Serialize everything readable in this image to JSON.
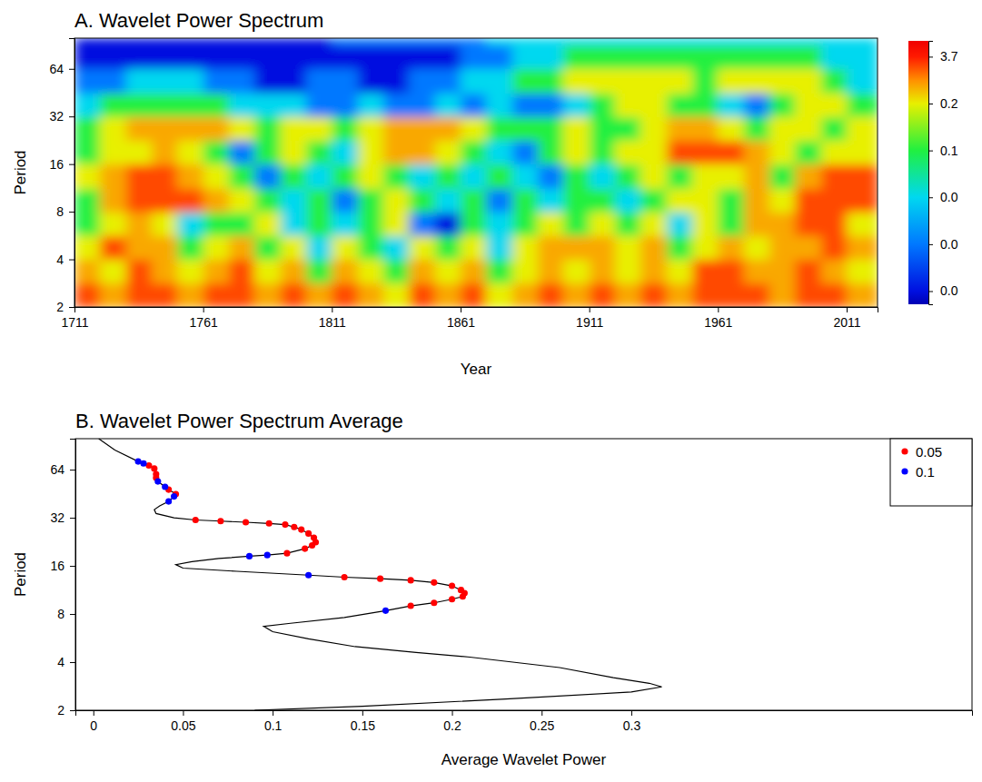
{
  "chart_data": [
    {
      "type": "heatmap",
      "title": "A. Wavelet Power Spectrum",
      "x_label": "Year",
      "y_label": "Period",
      "log": "y",
      "xlim": [
        1711,
        2023
      ],
      "ylim": [
        2,
        100
      ],
      "xticks": [
        1711,
        1761,
        1811,
        1861,
        1911,
        1961,
        2011
      ],
      "yticks": [
        2,
        4,
        8,
        16,
        32,
        64
      ],
      "x_bins": [
        1711,
        1721,
        1731,
        1741,
        1751,
        1761,
        1771,
        1781,
        1791,
        1801,
        1811,
        1821,
        1831,
        1841,
        1851,
        1861,
        1871,
        1881,
        1891,
        1901,
        1911,
        1921,
        1931,
        1941,
        1951,
        1961,
        1971,
        1981,
        1991,
        2001,
        2011,
        2023
      ],
      "y_bins": [
        2,
        2.83,
        4,
        5.66,
        8,
        11.31,
        16,
        22.63,
        32,
        45.25,
        64,
        90.51,
        100
      ],
      "cells": [
        [
          3,
          1.5,
          3,
          3,
          1.5,
          3,
          3,
          1.5,
          3,
          1.5,
          3,
          1.5,
          0.2,
          3,
          1.5,
          3,
          0.2,
          1.5,
          3,
          1.5,
          3,
          1.5,
          3,
          1.5,
          3,
          3,
          3,
          1.5,
          3,
          3,
          1.5
        ],
        [
          1.5,
          0.2,
          3,
          1.5,
          0.2,
          1.5,
          3,
          0.2,
          1.5,
          0.08,
          1.5,
          0.2,
          0.08,
          1.5,
          0.2,
          1.5,
          0.08,
          0.2,
          1.5,
          0.2,
          1.5,
          0.2,
          1.5,
          0.2,
          3,
          3,
          1.5,
          1.5,
          3,
          1.5,
          0.2
        ],
        [
          0.2,
          3,
          1.5,
          1.5,
          0.08,
          0.2,
          1.5,
          0.08,
          0.2,
          0.03,
          0.2,
          0.08,
          0.03,
          0.2,
          0.08,
          0.2,
          0.03,
          0.2,
          1.5,
          1.5,
          1.5,
          0.2,
          1.5,
          0.08,
          0.2,
          1.5,
          0.2,
          1.5,
          1.5,
          3,
          1.5
        ],
        [
          0.08,
          0.2,
          1.5,
          0.2,
          0.03,
          0.08,
          0.08,
          0.2,
          0.03,
          0.08,
          0.03,
          0.08,
          0.2,
          0.01,
          0.002,
          0.08,
          0.03,
          0.08,
          0.2,
          0.08,
          0.2,
          0.08,
          0.2,
          0.03,
          0.2,
          0.08,
          1.5,
          1.5,
          3,
          3,
          0.2
        ],
        [
          0.08,
          1.5,
          3,
          3,
          3,
          1.5,
          0.2,
          0.08,
          0.03,
          0.08,
          0.01,
          0.08,
          0.2,
          0.08,
          0.03,
          0.08,
          0.01,
          0.08,
          0.03,
          0.08,
          0.08,
          0.03,
          0.08,
          0.2,
          0.2,
          0.08,
          1.5,
          0.2,
          3,
          3,
          3
        ],
        [
          0.2,
          1.5,
          3,
          3,
          1.5,
          0.2,
          0.08,
          0.01,
          0.08,
          0.03,
          0.08,
          0.2,
          0.08,
          0.03,
          0.08,
          0.03,
          0.08,
          0.03,
          0.01,
          0.08,
          0.03,
          0.08,
          0.2,
          0.08,
          0.2,
          0.2,
          1.5,
          0.08,
          1.5,
          3,
          3
        ],
        [
          0.08,
          0.2,
          0.2,
          1.5,
          0.2,
          0.08,
          0.01,
          0.08,
          0.2,
          0.08,
          0.03,
          0.2,
          1.5,
          1.5,
          0.2,
          0.08,
          0.03,
          0.01,
          0.08,
          0.2,
          0.08,
          0.2,
          0.2,
          3,
          3,
          3,
          1.5,
          0.2,
          0.08,
          0.2,
          0.2
        ],
        [
          0.08,
          0.2,
          1.5,
          1.5,
          1.5,
          1.5,
          0.2,
          0.08,
          0.2,
          0.2,
          0.08,
          0.2,
          1.5,
          1.5,
          1.5,
          0.2,
          0.08,
          0.08,
          0.08,
          0.2,
          0.08,
          0.08,
          0.2,
          1.5,
          1.5,
          0.2,
          0.08,
          0.2,
          0.2,
          0.08,
          0.2
        ],
        [
          0.03,
          0.08,
          0.08,
          0.08,
          0.08,
          0.08,
          0.03,
          0.03,
          0.03,
          0.01,
          0.01,
          0.03,
          0.01,
          0.01,
          0.03,
          0.01,
          0.03,
          0.01,
          0.01,
          0.03,
          0.08,
          0.2,
          0.2,
          0.08,
          0.08,
          0.03,
          0.01,
          0.08,
          0.2,
          0.2,
          0.08
        ],
        [
          0.01,
          0.01,
          0.03,
          0.03,
          0.03,
          0.01,
          0.01,
          0.002,
          0.002,
          0.01,
          0.01,
          0.002,
          0.002,
          0.01,
          0.01,
          0.03,
          0.03,
          0.08,
          0.08,
          0.2,
          0.2,
          0.2,
          0.2,
          0.2,
          0.08,
          0.2,
          0.2,
          0.2,
          0.2,
          0.08,
          0.03
        ],
        [
          0.002,
          0.002,
          0.002,
          0.002,
          0.002,
          0.002,
          0.002,
          0.002,
          0.002,
          0.002,
          0.002,
          0.002,
          0.002,
          0.002,
          0.002,
          0.01,
          0.01,
          0.03,
          0.03,
          0.08,
          0.08,
          0.08,
          0.08,
          0.08,
          0.08,
          0.08,
          0.08,
          0.08,
          0.08,
          0.03,
          0.03
        ],
        [
          0.002,
          0.002,
          0.002,
          0.002,
          0.002,
          0.002,
          0.002,
          0.002,
          0.002,
          0.002,
          0.01,
          0.01,
          0.01,
          0.01,
          0.01,
          0.01,
          0.03,
          0.03,
          0.03,
          0.03,
          0.03,
          0.03,
          0.03,
          0.03,
          0.03,
          0.03,
          0.03,
          0.03,
          0.03,
          0.03,
          0.03
        ]
      ],
      "colorbar_lim": [
        0,
        4
      ],
      "colorbar_ticks": [
        {
          "value": 0.002,
          "label": "0.0"
        },
        {
          "value": 0.01,
          "label": "0.0"
        },
        {
          "value": 0.03,
          "label": "0.0"
        },
        {
          "value": 0.08,
          "label": "0.1"
        },
        {
          "value": 0.2,
          "label": "0.2"
        },
        3.7
      ]
    },
    {
      "type": "line",
      "title": "B. Wavelet Power Spectrum Average",
      "x_label": "Average Wavelet Power",
      "y_label": "Period",
      "log": "y",
      "xlim": [
        -0.01,
        0.49
      ],
      "ylim": [
        2,
        100
      ],
      "xticks": [
        0,
        0.05,
        0.1,
        0.15,
        0.2,
        0.25,
        0.3
      ],
      "yticks": [
        2,
        4,
        8,
        16,
        32,
        64
      ],
      "legend": "top-right",
      "series": [
        {
          "type": "line",
          "color": "#000000",
          "line_style": "solid",
          "x": [
            0.003,
            0.012,
            0.025,
            0.031,
            0.034,
            0.035,
            0.035,
            0.036,
            0.04,
            0.042,
            0.046,
            0.045,
            0.042,
            0.037,
            0.034,
            0.035,
            0.045,
            0.057,
            0.071,
            0.085,
            0.098,
            0.107,
            0.112,
            0.116,
            0.12,
            0.123,
            0.124,
            0.122,
            0.118,
            0.108,
            0.097,
            0.087,
            0.07,
            0.055,
            0.046,
            0.05,
            0.08,
            0.12,
            0.14,
            0.16,
            0.177,
            0.19,
            0.2,
            0.205,
            0.207,
            0.206,
            0.2,
            0.19,
            0.177,
            0.163,
            0.14,
            0.11,
            0.095,
            0.1,
            0.12,
            0.146,
            0.18,
            0.21,
            0.26,
            0.29,
            0.31,
            0.317,
            0.3,
            0.23,
            0.15,
            0.09
          ],
          "values": [
            100,
            85,
            72,
            68,
            65,
            60,
            57,
            54,
            50,
            48,
            45,
            43.5,
            40.5,
            38,
            36,
            34,
            32,
            31,
            30.5,
            30,
            29.5,
            29,
            28,
            27,
            25.5,
            24,
            22.5,
            21.5,
            20.5,
            19.2,
            18.7,
            18.4,
            17.8,
            17,
            16.3,
            15.5,
            14.8,
            14,
            13.6,
            13.3,
            13,
            12.6,
            12,
            11.3,
            10.8,
            10.3,
            9.9,
            9.4,
            9,
            8.4,
            7.6,
            7,
            6.7,
            6.2,
            5.6,
            5,
            4.6,
            4.3,
            3.7,
            3.2,
            2.95,
            2.8,
            2.6,
            2.35,
            2.12,
            2
          ]
        },
        {
          "type": "scatter",
          "name": "0.05",
          "color": "#ff0000",
          "marker": "circle",
          "x": [
            0.031,
            0.034,
            0.035,
            0.035,
            0.042,
            0.046,
            0.057,
            0.071,
            0.085,
            0.098,
            0.107,
            0.112,
            0.116,
            0.12,
            0.123,
            0.124,
            0.122,
            0.118,
            0.108,
            0.14,
            0.16,
            0.177,
            0.19,
            0.2,
            0.205,
            0.207,
            0.206,
            0.2,
            0.19,
            0.177
          ],
          "values": [
            68,
            65,
            60,
            57,
            48,
            45,
            31,
            30.5,
            30,
            29.5,
            29,
            28,
            27,
            25.5,
            24,
            22.5,
            21.5,
            20.5,
            19.2,
            13.6,
            13.3,
            13,
            12.6,
            12,
            11.3,
            10.8,
            10.3,
            9.9,
            9.4,
            9
          ]
        },
        {
          "type": "scatter",
          "name": "0.1",
          "color": "#0000ff",
          "marker": "circle",
          "x": [
            0.025,
            0.028,
            0.036,
            0.04,
            0.045,
            0.042,
            0.097,
            0.087,
            0.12,
            0.163
          ],
          "values": [
            72,
            70,
            54,
            50,
            43.5,
            40.5,
            18.7,
            18.4,
            14,
            8.4
          ]
        }
      ]
    }
  ]
}
